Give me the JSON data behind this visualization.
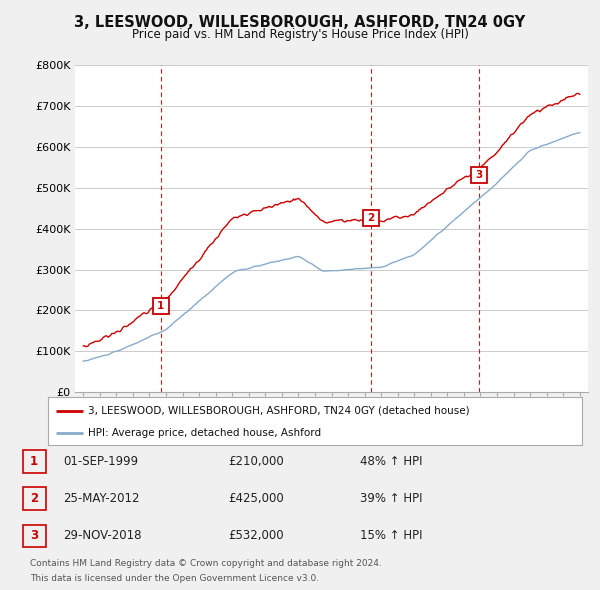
{
  "title": "3, LEESWOOD, WILLESBOROUGH, ASHFORD, TN24 0GY",
  "subtitle": "Price paid vs. HM Land Registry's House Price Index (HPI)",
  "ylim": [
    0,
    800000
  ],
  "yticks": [
    0,
    100000,
    200000,
    300000,
    400000,
    500000,
    600000,
    700000,
    800000
  ],
  "ytick_labels": [
    "£0",
    "£100K",
    "£200K",
    "£300K",
    "£400K",
    "£500K",
    "£600K",
    "£700K",
    "£800K"
  ],
  "background_color": "#f0f0f0",
  "plot_bg_color": "#ffffff",
  "grid_color": "#cccccc",
  "red_line_color": "#cc0000",
  "blue_line_color": "#88aacc",
  "dashed_line_color": "#cc0000",
  "sale_points": [
    {
      "year": 1999.67,
      "price": 210000,
      "label": "1"
    },
    {
      "year": 2012.39,
      "price": 425000,
      "label": "2"
    },
    {
      "year": 2018.91,
      "price": 532000,
      "label": "3"
    }
  ],
  "vline_years": [
    1999.67,
    2012.39,
    2018.91
  ],
  "legend_entries": [
    "3, LEESWOOD, WILLESBOROUGH, ASHFORD, TN24 0GY (detached house)",
    "HPI: Average price, detached house, Ashford"
  ],
  "table_rows": [
    {
      "num": "1",
      "date": "01-SEP-1999",
      "price": "£210,000",
      "pct": "48% ↑ HPI"
    },
    {
      "num": "2",
      "date": "25-MAY-2012",
      "price": "£425,000",
      "pct": "39% ↑ HPI"
    },
    {
      "num": "3",
      "date": "29-NOV-2018",
      "price": "£532,000",
      "pct": "15% ↑ HPI"
    }
  ],
  "footnote1": "Contains HM Land Registry data © Crown copyright and database right 2024.",
  "footnote2": "This data is licensed under the Open Government Licence v3.0.",
  "xmin": 1994.5,
  "xmax": 2025.5
}
